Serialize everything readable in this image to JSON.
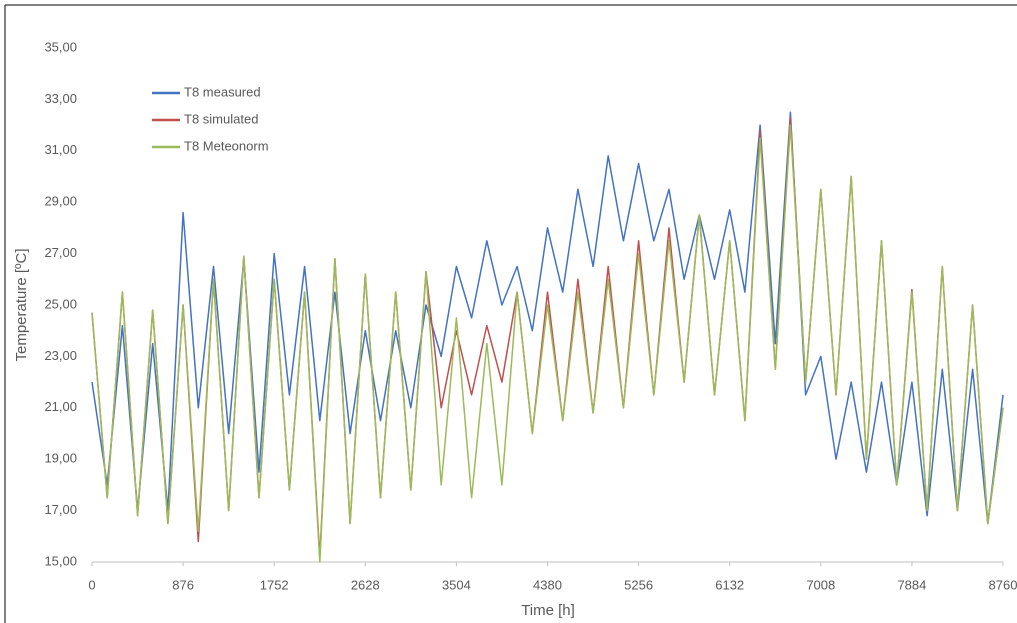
{
  "chart_data": {
    "type": "line",
    "xlabel": "Time [h]",
    "ylabel": "Temperature [ºC]",
    "x": [
      0,
      146,
      292,
      438,
      584,
      730,
      876,
      1022,
      1168,
      1314,
      1460,
      1606,
      1752,
      1898,
      2044,
      2190,
      2336,
      2482,
      2628,
      2774,
      2920,
      3066,
      3212,
      3358,
      3504,
      3650,
      3796,
      3942,
      4088,
      4234,
      4380,
      4526,
      4672,
      4818,
      4964,
      5110,
      5256,
      5402,
      5548,
      5694,
      5840,
      5986,
      6132,
      6278,
      6424,
      6570,
      6716,
      6862,
      7008,
      7154,
      7300,
      7446,
      7592,
      7738,
      7884,
      8030,
      8176,
      8322,
      8468,
      8614,
      8760
    ],
    "series": [
      {
        "name": "T8 measured",
        "color": "#4472c4",
        "values": [
          22.0,
          18.0,
          24.2,
          17.0,
          23.5,
          17.0,
          28.6,
          21.0,
          26.5,
          20.0,
          26.8,
          18.5,
          27.0,
          21.5,
          26.5,
          20.5,
          25.5,
          20.0,
          24.0,
          20.5,
          24.0,
          21.0,
          25.0,
          23.0,
          26.5,
          24.5,
          27.5,
          25.0,
          26.5,
          24.0,
          28.0,
          25.5,
          29.5,
          26.5,
          30.8,
          27.5,
          30.5,
          27.5,
          29.5,
          26.0,
          28.5,
          26.0,
          28.7,
          25.5,
          32.0,
          23.5,
          32.5,
          21.5,
          23.0,
          19.0,
          22.0,
          18.5,
          22.0,
          18.0,
          22.0,
          16.8,
          22.5,
          17.0,
          22.5,
          16.5,
          21.5
        ]
      },
      {
        "name": "T8 simulated",
        "color": "#c0504d",
        "values": [
          24.7,
          17.5,
          25.5,
          16.8,
          24.8,
          16.5,
          25.0,
          15.8,
          26.0,
          17.0,
          26.9,
          17.5,
          26.0,
          17.8,
          25.5,
          15.2,
          26.8,
          16.5,
          26.2,
          17.5,
          25.5,
          17.8,
          26.3,
          21.0,
          24.0,
          21.5,
          24.2,
          22.0,
          25.5,
          20.0,
          25.5,
          20.5,
          26.0,
          20.8,
          26.5,
          21.0,
          27.5,
          21.5,
          28.0,
          22.0,
          28.5,
          21.5,
          27.5,
          20.5,
          31.8,
          22.5,
          32.3,
          22.0,
          29.5,
          21.5,
          30.0,
          19.0,
          27.5,
          18.0,
          25.6,
          17.0,
          26.5,
          17.0,
          25.0,
          16.5,
          21.0
        ]
      },
      {
        "name": "T8 Meteonorm",
        "color": "#9bbb59",
        "values": [
          24.7,
          17.5,
          25.5,
          16.8,
          24.8,
          16.5,
          25.0,
          16.2,
          26.0,
          17.0,
          26.9,
          17.5,
          26.0,
          17.8,
          25.5,
          15.0,
          26.8,
          16.5,
          26.2,
          17.5,
          25.5,
          17.8,
          26.3,
          18.0,
          24.5,
          17.5,
          23.5,
          18.0,
          25.5,
          20.0,
          25.0,
          20.5,
          25.5,
          20.8,
          26.0,
          21.0,
          27.0,
          21.5,
          27.5,
          22.0,
          28.5,
          21.5,
          27.5,
          20.5,
          31.5,
          22.5,
          32.0,
          22.0,
          29.5,
          21.5,
          30.0,
          19.0,
          27.5,
          18.0,
          25.5,
          17.0,
          26.5,
          17.0,
          25.0,
          16.5,
          21.0
        ]
      }
    ],
    "xlim": [
      0,
      8760
    ],
    "xticks": [
      0,
      876,
      1752,
      2628,
      3504,
      4380,
      5256,
      6132,
      7008,
      7884,
      8760
    ],
    "ylim": [
      15,
      35
    ],
    "yticks": [
      {
        "value": 15,
        "label": "15,00"
      },
      {
        "value": 17,
        "label": "17,00"
      },
      {
        "value": 19,
        "label": "19,00"
      },
      {
        "value": 21,
        "label": "21,00"
      },
      {
        "value": 23,
        "label": "23,00"
      },
      {
        "value": 25,
        "label": "25,00"
      },
      {
        "value": 27,
        "label": "27,00"
      },
      {
        "value": 29,
        "label": "29,00"
      },
      {
        "value": 31,
        "label": "31,00"
      },
      {
        "value": 33,
        "label": "33,00"
      },
      {
        "value": 35,
        "label": "35,00"
      }
    ],
    "grid": false,
    "legend": "upper left"
  }
}
